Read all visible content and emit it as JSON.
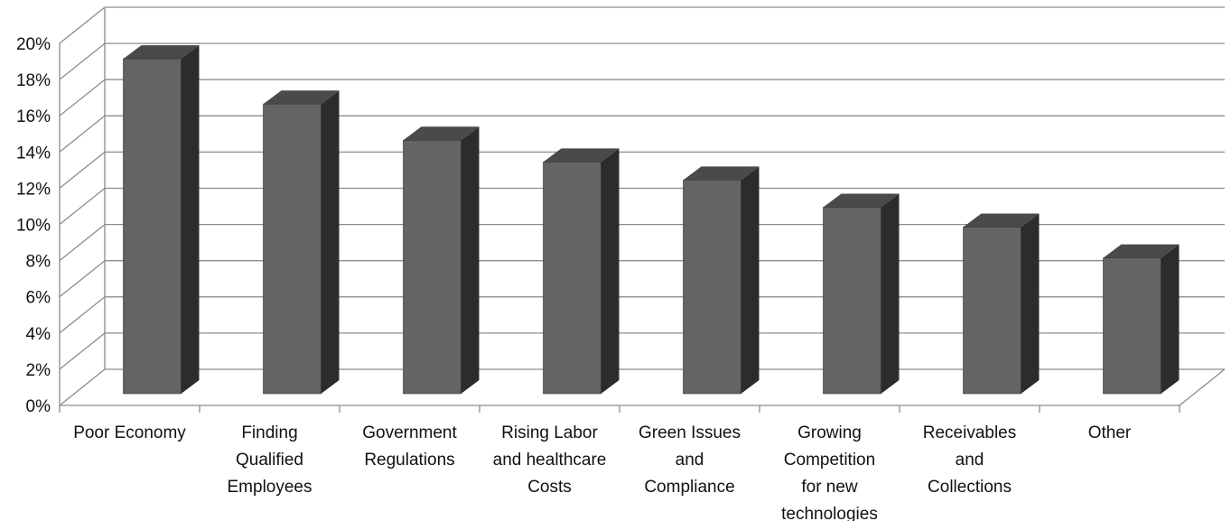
{
  "chart_data": {
    "type": "bar",
    "title": "",
    "xlabel": "",
    "ylabel": "",
    "ylim": [
      0,
      20
    ],
    "y_tick_labels": [
      "0%",
      "2%",
      "4%",
      "6%",
      "8%",
      "10%",
      "12%",
      "14%",
      "16%",
      "18%",
      "20%"
    ],
    "categories": [
      [
        "Poor Economy"
      ],
      [
        "Finding",
        "Qualified",
        "Employees"
      ],
      [
        "Government",
        "Regulations"
      ],
      [
        "Rising Labor",
        "and healthcare",
        "Costs"
      ],
      [
        "Green Issues",
        "and",
        "Compliance"
      ],
      [
        "Growing",
        "Competition",
        "for new",
        "technologies"
      ],
      [
        "Receivables",
        "and",
        "Collections"
      ],
      [
        "Other"
      ]
    ],
    "values": [
      18.5,
      16.0,
      14.0,
      12.8,
      11.8,
      10.3,
      9.2,
      7.5
    ],
    "grid": true,
    "style": "3d-column",
    "colors": {
      "bar_front": "#646464",
      "bar_top": "#4a4a4a",
      "bar_side": "#2c2c2c",
      "grid": "#8c8c8c"
    }
  }
}
